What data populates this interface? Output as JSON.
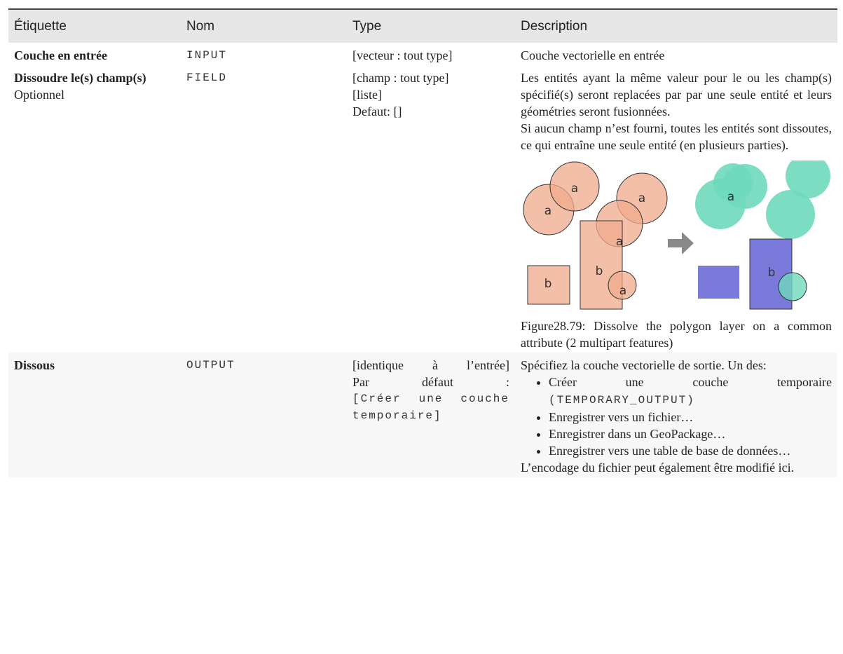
{
  "header": {
    "columns": [
      "Étiquette",
      "Nom",
      "Type",
      "Description"
    ]
  },
  "rows": [
    {
      "label": "Couche en entrée",
      "name": "INPUT",
      "type": [
        "[vecteur : tout type]"
      ],
      "description": [
        "Couche vectorielle en entrée"
      ]
    },
    {
      "label": "Dissoudre le(s) champ(s)",
      "optional": "Optionnel",
      "name": "FIELD",
      "type": [
        "[champ : tout type]",
        "[liste]",
        "Defaut: []"
      ],
      "description": [
        "Les entités ayant la même valeur pour le ou les champ(s) spécifié(s) seront replacées par par une seule entité et leurs géométries seront fusionnées.",
        "Si aucun champ n’est fourni, toutes les entités sont dissoutes, ce qui entraîne une seule entité (en plusieurs parties)."
      ],
      "figure": {
        "labels_left": [
          "a",
          "a",
          "a",
          "a",
          "b",
          "b",
          "a"
        ],
        "labels_right": [
          "a",
          "b"
        ],
        "caption": "Figure28.79: Dissolve the polygon layer on a common attribute (2 multipart features)"
      }
    },
    {
      "label": "Dissous",
      "name": "OUTPUT",
      "type": [
        "[identique à l’entrée]"
      ],
      "default_label": "Par défaut :",
      "default_value": "[Créer une couche temporaire]",
      "description": [
        "Spécifiez la couche vectorielle de sortie. Un des:"
      ],
      "options": [
        {
          "text": "Créer une couche temporaire",
          "code": "(TEMPORARY_OUTPUT)"
        },
        {
          "text": "Enregistrer vers un fichier…"
        },
        {
          "text": "Enregistrer dans un GeoPackage…"
        },
        {
          "text": "Enregistrer vers une table de base de données…"
        }
      ],
      "note": "L’encodage du fichier peut également être modifié ici."
    }
  ]
}
